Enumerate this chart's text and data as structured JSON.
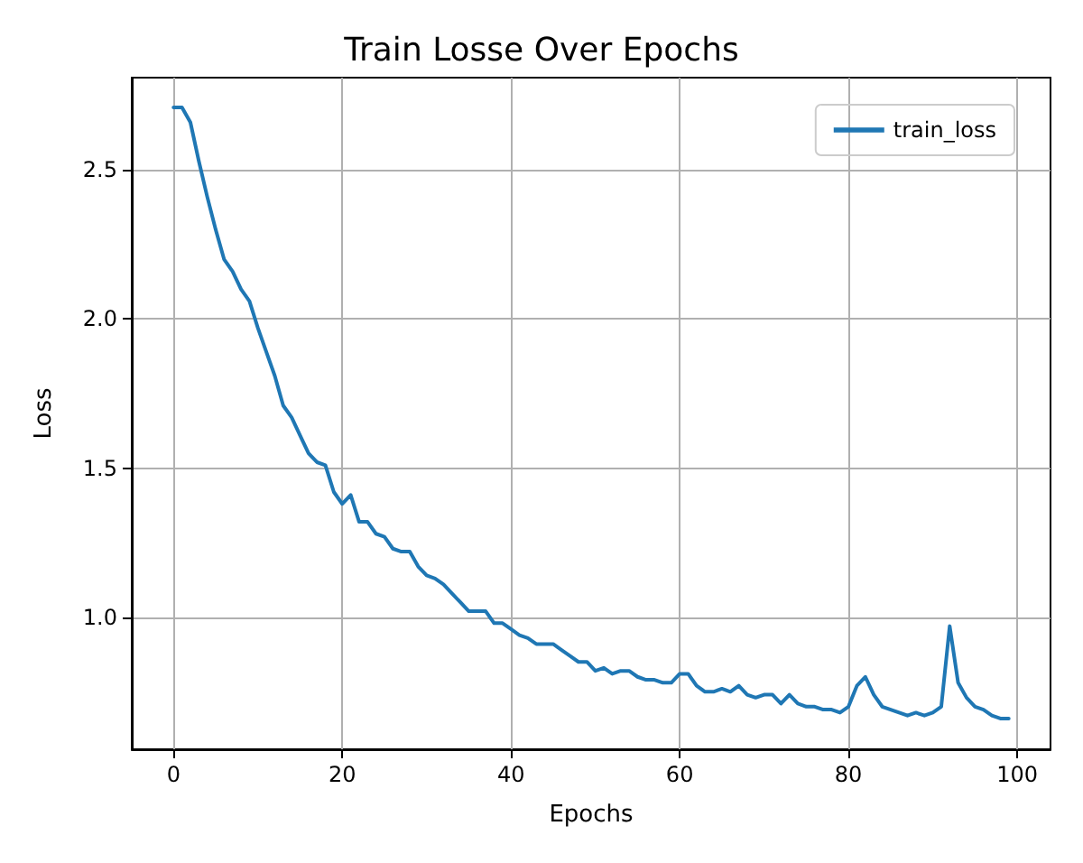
{
  "chart_data": {
    "type": "line",
    "title": "Train Losse Over Epochs",
    "xlabel": "Epochs",
    "ylabel": "Loss",
    "x": [
      0,
      1,
      2,
      3,
      4,
      5,
      6,
      7,
      8,
      9,
      10,
      11,
      12,
      13,
      14,
      15,
      16,
      17,
      18,
      19,
      20,
      21,
      22,
      23,
      24,
      25,
      26,
      27,
      28,
      29,
      30,
      31,
      32,
      33,
      34,
      35,
      36,
      37,
      38,
      39,
      40,
      41,
      42,
      43,
      44,
      45,
      46,
      47,
      48,
      49,
      50,
      51,
      52,
      53,
      54,
      55,
      56,
      57,
      58,
      59,
      60,
      61,
      62,
      63,
      64,
      65,
      66,
      67,
      68,
      69,
      70,
      71,
      72,
      73,
      74,
      75,
      76,
      77,
      78,
      79,
      80,
      81,
      82,
      83,
      84,
      85,
      86,
      87,
      88,
      89,
      90,
      91,
      92,
      93,
      94,
      95,
      96,
      97,
      98,
      99
    ],
    "series": [
      {
        "name": "train_loss",
        "color": "#1f77b4",
        "values": [
          2.71,
          2.71,
          2.66,
          2.53,
          2.41,
          2.3,
          2.2,
          2.16,
          2.1,
          2.06,
          1.97,
          1.89,
          1.81,
          1.71,
          1.67,
          1.61,
          1.55,
          1.52,
          1.51,
          1.42,
          1.38,
          1.41,
          1.32,
          1.32,
          1.28,
          1.27,
          1.23,
          1.22,
          1.22,
          1.17,
          1.14,
          1.13,
          1.11,
          1.08,
          1.05,
          1.02,
          1.02,
          1.02,
          0.98,
          0.98,
          0.96,
          0.94,
          0.93,
          0.91,
          0.91,
          0.91,
          0.89,
          0.87,
          0.85,
          0.85,
          0.82,
          0.83,
          0.81,
          0.82,
          0.82,
          0.8,
          0.79,
          0.79,
          0.78,
          0.78,
          0.81,
          0.81,
          0.77,
          0.75,
          0.75,
          0.76,
          0.75,
          0.77,
          0.74,
          0.73,
          0.74,
          0.74,
          0.71,
          0.74,
          0.71,
          0.7,
          0.7,
          0.69,
          0.69,
          0.68,
          0.7,
          0.77,
          0.8,
          0.74,
          0.7,
          0.69,
          0.68,
          0.67,
          0.68,
          0.67,
          0.68,
          0.7,
          0.97,
          0.78,
          0.73,
          0.7,
          0.69,
          0.67,
          0.66,
          0.66
        ]
      }
    ],
    "xlim": [
      -4.95,
      103.95
    ],
    "xticks": [
      0,
      20,
      40,
      60,
      80,
      100
    ],
    "ylim": [
      0.557,
      2.81
    ],
    "yticks": [
      {
        "value": 1,
        "label": "1.0"
      },
      1.5,
      {
        "value": 2,
        "label": "2.0"
      },
      2.5
    ],
    "grid": true,
    "legend": "top right",
    "line_style": "solid",
    "marker": "none"
  }
}
